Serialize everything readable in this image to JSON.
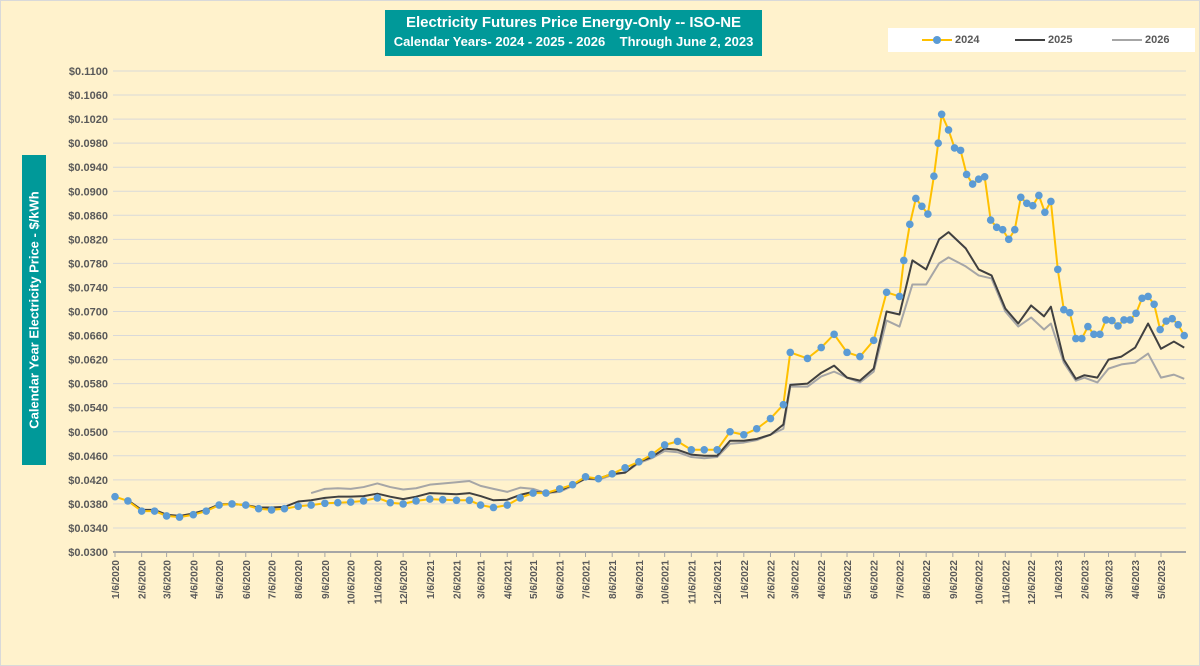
{
  "chart_data": {
    "type": "line",
    "title": "Electricity Futures Price Energy-Only -- ISO-NE",
    "subtitle": "Calendar Years- 2024 - 2025 - 2026    Through June 2, 2023",
    "ylabel": "Calendar Year Electricity Price - $/kWh",
    "xlabel": "",
    "ylim": [
      0.03,
      0.11
    ],
    "ytick_step": 0.004,
    "y_format": "$0.0000",
    "grid": "horizontal",
    "legend_placement": "top-right",
    "xticks": [
      "1/6/2020",
      "2/6/2020",
      "3/6/2020",
      "4/6/2020",
      "5/6/2020",
      "6/6/2020",
      "7/6/2020",
      "8/6/2020",
      "9/6/2020",
      "10/6/2020",
      "11/6/2020",
      "12/6/2020",
      "1/6/2021",
      "2/6/2021",
      "3/6/2021",
      "4/6/2021",
      "5/6/2021",
      "6/6/2021",
      "7/6/2021",
      "8/6/2021",
      "9/6/2021",
      "10/6/2021",
      "11/6/2021",
      "12/6/2021",
      "1/6/2022",
      "2/6/2022",
      "3/6/2022",
      "4/6/2022",
      "5/6/2022",
      "6/6/2022",
      "7/6/2022",
      "8/6/2022",
      "9/6/2022",
      "10/6/2022",
      "11/6/2022",
      "12/6/2022",
      "1/6/2023",
      "2/6/2023",
      "3/6/2023",
      "4/6/2023",
      "5/6/2023"
    ],
    "series": [
      {
        "name": "2024",
        "color": "#FFC000",
        "marker_color": "#5B9BD5",
        "marker": "circle",
        "points": [
          [
            "2020-01-06",
            0.0392
          ],
          [
            "2020-01-21",
            0.0385
          ],
          [
            "2020-02-06",
            0.0368
          ],
          [
            "2020-02-21",
            0.0368
          ],
          [
            "2020-03-06",
            0.036
          ],
          [
            "2020-03-21",
            0.0358
          ],
          [
            "2020-04-06",
            0.0362
          ],
          [
            "2020-04-21",
            0.0368
          ],
          [
            "2020-05-06",
            0.0378
          ],
          [
            "2020-05-21",
            0.038
          ],
          [
            "2020-06-06",
            0.0378
          ],
          [
            "2020-06-21",
            0.0372
          ],
          [
            "2020-07-06",
            0.037
          ],
          [
            "2020-07-21",
            0.0372
          ],
          [
            "2020-08-06",
            0.0376
          ],
          [
            "2020-08-21",
            0.0378
          ],
          [
            "2020-09-06",
            0.0381
          ],
          [
            "2020-09-21",
            0.0382
          ],
          [
            "2020-10-06",
            0.0383
          ],
          [
            "2020-10-21",
            0.0385
          ],
          [
            "2020-11-06",
            0.039
          ],
          [
            "2020-11-21",
            0.0382
          ],
          [
            "2020-12-06",
            0.038
          ],
          [
            "2020-12-21",
            0.0385
          ],
          [
            "2021-01-06",
            0.0388
          ],
          [
            "2021-01-21",
            0.0387
          ],
          [
            "2021-02-06",
            0.0386
          ],
          [
            "2021-02-21",
            0.0386
          ],
          [
            "2021-03-06",
            0.0378
          ],
          [
            "2021-03-21",
            0.0374
          ],
          [
            "2021-04-06",
            0.0378
          ],
          [
            "2021-04-21",
            0.039
          ],
          [
            "2021-05-06",
            0.0398
          ],
          [
            "2021-05-21",
            0.0398
          ],
          [
            "2021-06-06",
            0.0405
          ],
          [
            "2021-06-21",
            0.0412
          ],
          [
            "2021-07-06",
            0.0425
          ],
          [
            "2021-07-21",
            0.0422
          ],
          [
            "2021-08-06",
            0.043
          ],
          [
            "2021-08-21",
            0.044
          ],
          [
            "2021-09-06",
            0.045
          ],
          [
            "2021-09-21",
            0.0462
          ],
          [
            "2021-10-06",
            0.0478
          ],
          [
            "2021-10-21",
            0.0484
          ],
          [
            "2021-11-06",
            0.047
          ],
          [
            "2021-11-21",
            0.047
          ],
          [
            "2021-12-06",
            0.047
          ],
          [
            "2021-12-21",
            0.05
          ],
          [
            "2022-01-06",
            0.0495
          ],
          [
            "2022-01-21",
            0.0505
          ],
          [
            "2022-02-06",
            0.0522
          ],
          [
            "2022-02-21",
            0.0545
          ],
          [
            "2022-03-01",
            0.0632
          ],
          [
            "2022-03-21",
            0.0622
          ],
          [
            "2022-04-06",
            0.064
          ],
          [
            "2022-04-21",
            0.0662
          ],
          [
            "2022-05-06",
            0.0632
          ],
          [
            "2022-05-21",
            0.0625
          ],
          [
            "2022-06-06",
            0.0652
          ],
          [
            "2022-06-21",
            0.0732
          ],
          [
            "2022-07-06",
            0.0725
          ],
          [
            "2022-07-11",
            0.0785
          ],
          [
            "2022-07-18",
            0.0845
          ],
          [
            "2022-07-25",
            0.0888
          ],
          [
            "2022-08-01",
            0.0875
          ],
          [
            "2022-08-08",
            0.0862
          ],
          [
            "2022-08-15",
            0.0925
          ],
          [
            "2022-08-20",
            0.098
          ],
          [
            "2022-08-24",
            0.1028
          ],
          [
            "2022-09-01",
            0.1002
          ],
          [
            "2022-09-08",
            0.0972
          ],
          [
            "2022-09-15",
            0.0968
          ],
          [
            "2022-09-22",
            0.0928
          ],
          [
            "2022-09-29",
            0.0912
          ],
          [
            "2022-10-06",
            0.092
          ],
          [
            "2022-10-13",
            0.0924
          ],
          [
            "2022-10-20",
            0.0852
          ],
          [
            "2022-10-27",
            0.084
          ],
          [
            "2022-11-03",
            0.0836
          ],
          [
            "2022-11-10",
            0.082
          ],
          [
            "2022-11-17",
            0.0836
          ],
          [
            "2022-11-24",
            0.089
          ],
          [
            "2022-12-01",
            0.088
          ],
          [
            "2022-12-08",
            0.0876
          ],
          [
            "2022-12-15",
            0.0893
          ],
          [
            "2022-12-22",
            0.0865
          ],
          [
            "2022-12-29",
            0.0883
          ],
          [
            "2023-01-06",
            0.077
          ],
          [
            "2023-01-13",
            0.0703
          ],
          [
            "2023-01-20",
            0.0698
          ],
          [
            "2023-01-27",
            0.0655
          ],
          [
            "2023-02-03",
            0.0655
          ],
          [
            "2023-02-10",
            0.0675
          ],
          [
            "2023-02-17",
            0.0662
          ],
          [
            "2023-02-24",
            0.0662
          ],
          [
            "2023-03-03",
            0.0686
          ],
          [
            "2023-03-10",
            0.0685
          ],
          [
            "2023-03-17",
            0.0676
          ],
          [
            "2023-03-24",
            0.0686
          ],
          [
            "2023-03-31",
            0.0686
          ],
          [
            "2023-04-07",
            0.0697
          ],
          [
            "2023-04-14",
            0.0722
          ],
          [
            "2023-04-21",
            0.0725
          ],
          [
            "2023-04-28",
            0.0712
          ],
          [
            "2023-05-05",
            0.067
          ],
          [
            "2023-05-12",
            0.0684
          ],
          [
            "2023-05-19",
            0.0688
          ],
          [
            "2023-05-26",
            0.0678
          ],
          [
            "2023-06-02",
            0.066
          ]
        ]
      },
      {
        "name": "2025",
        "color": "#404040",
        "points": [
          [
            "2020-01-21",
            0.0386
          ],
          [
            "2020-02-06",
            0.037
          ],
          [
            "2020-02-21",
            0.037
          ],
          [
            "2020-03-06",
            0.0362
          ],
          [
            "2020-03-21",
            0.036
          ],
          [
            "2020-04-06",
            0.0364
          ],
          [
            "2020-04-21",
            0.037
          ],
          [
            "2020-05-06",
            0.0379
          ],
          [
            "2020-05-21",
            0.038
          ],
          [
            "2020-06-06",
            0.0378
          ],
          [
            "2020-06-21",
            0.0374
          ],
          [
            "2020-07-06",
            0.0374
          ],
          [
            "2020-07-21",
            0.0375
          ],
          [
            "2020-08-06",
            0.0384
          ],
          [
            "2020-08-21",
            0.0386
          ],
          [
            "2020-09-06",
            0.039
          ],
          [
            "2020-09-21",
            0.0392
          ],
          [
            "2020-10-06",
            0.0392
          ],
          [
            "2020-10-21",
            0.0393
          ],
          [
            "2020-11-06",
            0.0397
          ],
          [
            "2020-11-21",
            0.0392
          ],
          [
            "2020-12-06",
            0.0388
          ],
          [
            "2020-12-21",
            0.0392
          ],
          [
            "2021-01-06",
            0.0398
          ],
          [
            "2021-01-21",
            0.0397
          ],
          [
            "2021-02-06",
            0.0396
          ],
          [
            "2021-02-21",
            0.0398
          ],
          [
            "2021-03-06",
            0.0393
          ],
          [
            "2021-03-21",
            0.0386
          ],
          [
            "2021-04-06",
            0.0387
          ],
          [
            "2021-04-21",
            0.0395
          ],
          [
            "2021-05-06",
            0.04
          ],
          [
            "2021-05-21",
            0.0398
          ],
          [
            "2021-06-06",
            0.0402
          ],
          [
            "2021-06-21",
            0.0412
          ],
          [
            "2021-07-06",
            0.0422
          ],
          [
            "2021-07-21",
            0.0422
          ],
          [
            "2021-08-06",
            0.043
          ],
          [
            "2021-08-21",
            0.0432
          ],
          [
            "2021-09-06",
            0.045
          ],
          [
            "2021-09-21",
            0.0458
          ],
          [
            "2021-10-06",
            0.0472
          ],
          [
            "2021-10-21",
            0.047
          ],
          [
            "2021-11-06",
            0.0462
          ],
          [
            "2021-11-21",
            0.046
          ],
          [
            "2021-12-06",
            0.046
          ],
          [
            "2021-12-21",
            0.0485
          ],
          [
            "2022-01-06",
            0.0485
          ],
          [
            "2022-01-21",
            0.0488
          ],
          [
            "2022-02-06",
            0.0495
          ],
          [
            "2022-02-21",
            0.0512
          ],
          [
            "2022-03-01",
            0.0578
          ],
          [
            "2022-03-21",
            0.058
          ],
          [
            "2022-04-06",
            0.0598
          ],
          [
            "2022-04-21",
            0.061
          ],
          [
            "2022-05-06",
            0.059
          ],
          [
            "2022-05-21",
            0.0585
          ],
          [
            "2022-06-06",
            0.0605
          ],
          [
            "2022-06-21",
            0.07
          ],
          [
            "2022-07-06",
            0.0695
          ],
          [
            "2022-07-21",
            0.0785
          ],
          [
            "2022-08-06",
            0.077
          ],
          [
            "2022-08-21",
            0.082
          ],
          [
            "2022-09-01",
            0.0832
          ],
          [
            "2022-09-21",
            0.0805
          ],
          [
            "2022-10-06",
            0.077
          ],
          [
            "2022-10-21",
            0.076
          ],
          [
            "2022-11-06",
            0.0705
          ],
          [
            "2022-11-21",
            0.068
          ],
          [
            "2022-12-06",
            0.071
          ],
          [
            "2022-12-21",
            0.0692
          ],
          [
            "2022-12-29",
            0.0708
          ],
          [
            "2023-01-13",
            0.062
          ],
          [
            "2023-01-27",
            0.0588
          ],
          [
            "2023-02-06",
            0.0594
          ],
          [
            "2023-02-21",
            0.059
          ],
          [
            "2023-03-06",
            0.062
          ],
          [
            "2023-03-21",
            0.0625
          ],
          [
            "2023-04-06",
            0.064
          ],
          [
            "2023-04-21",
            0.068
          ],
          [
            "2023-05-06",
            0.0638
          ],
          [
            "2023-05-21",
            0.065
          ],
          [
            "2023-06-02",
            0.064
          ]
        ]
      },
      {
        "name": "2026",
        "color": "#A6A6A6",
        "points": [
          [
            "2020-08-21",
            0.0398
          ],
          [
            "2020-09-06",
            0.0405
          ],
          [
            "2020-09-21",
            0.0406
          ],
          [
            "2020-10-06",
            0.0405
          ],
          [
            "2020-10-21",
            0.0408
          ],
          [
            "2020-11-06",
            0.0414
          ],
          [
            "2020-11-21",
            0.0408
          ],
          [
            "2020-12-06",
            0.0404
          ],
          [
            "2020-12-21",
            0.0406
          ],
          [
            "2021-01-06",
            0.0412
          ],
          [
            "2021-01-21",
            0.0414
          ],
          [
            "2021-02-06",
            0.0416
          ],
          [
            "2021-02-21",
            0.0418
          ],
          [
            "2021-03-06",
            0.041
          ],
          [
            "2021-03-21",
            0.0405
          ],
          [
            "2021-04-06",
            0.04
          ],
          [
            "2021-04-21",
            0.0407
          ],
          [
            "2021-05-06",
            0.0405
          ],
          [
            "2021-05-21",
            0.0398
          ],
          [
            "2021-06-06",
            0.04
          ],
          [
            "2021-06-21",
            0.041
          ],
          [
            "2021-07-06",
            0.0422
          ],
          [
            "2021-07-21",
            0.042
          ],
          [
            "2021-08-06",
            0.0428
          ],
          [
            "2021-08-21",
            0.0432
          ],
          [
            "2021-09-06",
            0.0448
          ],
          [
            "2021-09-21",
            0.0456
          ],
          [
            "2021-10-06",
            0.0468
          ],
          [
            "2021-10-21",
            0.0466
          ],
          [
            "2021-11-06",
            0.0458
          ],
          [
            "2021-11-21",
            0.0456
          ],
          [
            "2021-12-06",
            0.0458
          ],
          [
            "2021-12-21",
            0.048
          ],
          [
            "2022-01-06",
            0.0482
          ],
          [
            "2022-01-21",
            0.0486
          ],
          [
            "2022-02-06",
            0.0495
          ],
          [
            "2022-02-21",
            0.0505
          ],
          [
            "2022-03-01",
            0.0575
          ],
          [
            "2022-03-21",
            0.0575
          ],
          [
            "2022-04-06",
            0.0592
          ],
          [
            "2022-04-21",
            0.06
          ],
          [
            "2022-05-06",
            0.059
          ],
          [
            "2022-05-21",
            0.0582
          ],
          [
            "2022-06-06",
            0.06
          ],
          [
            "2022-06-21",
            0.0685
          ],
          [
            "2022-07-06",
            0.0675
          ],
          [
            "2022-07-21",
            0.0745
          ],
          [
            "2022-08-06",
            0.0745
          ],
          [
            "2022-08-21",
            0.078
          ],
          [
            "2022-09-01",
            0.079
          ],
          [
            "2022-09-21",
            0.0775
          ],
          [
            "2022-10-06",
            0.076
          ],
          [
            "2022-10-21",
            0.0755
          ],
          [
            "2022-11-06",
            0.07
          ],
          [
            "2022-11-21",
            0.0675
          ],
          [
            "2022-12-06",
            0.069
          ],
          [
            "2022-12-21",
            0.067
          ],
          [
            "2022-12-29",
            0.068
          ],
          [
            "2023-01-13",
            0.0615
          ],
          [
            "2023-01-27",
            0.0585
          ],
          [
            "2023-02-06",
            0.059
          ],
          [
            "2023-02-21",
            0.0582
          ],
          [
            "2023-03-06",
            0.0605
          ],
          [
            "2023-03-21",
            0.0612
          ],
          [
            "2023-04-06",
            0.0615
          ],
          [
            "2023-04-21",
            0.063
          ],
          [
            "2023-05-06",
            0.059
          ],
          [
            "2023-05-21",
            0.0595
          ],
          [
            "2023-06-02",
            0.0588
          ]
        ]
      }
    ]
  }
}
